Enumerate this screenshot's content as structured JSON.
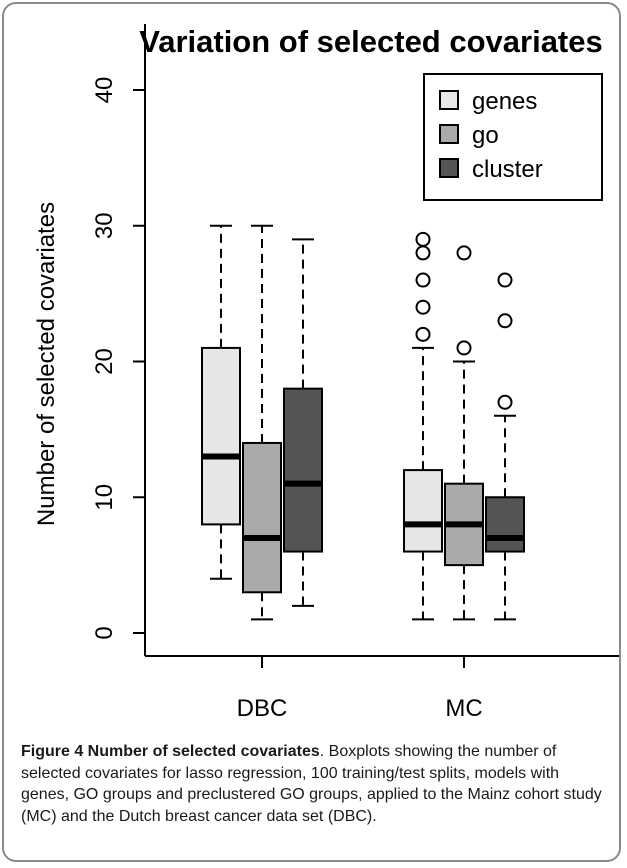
{
  "chart_data": {
    "type": "box",
    "title": "Variation of selected covariates",
    "ylabel": "Number of selected covariates",
    "xlabel": "",
    "ylim": [
      0,
      40
    ],
    "yticks": [
      0,
      10,
      20,
      30,
      40
    ],
    "categories": [
      "DBC",
      "MC"
    ],
    "legend": {
      "placement": "top-right"
    },
    "series": [
      {
        "name": "genes",
        "color": "#e6e6e6",
        "boxes": [
          {
            "category": "DBC",
            "min": 4,
            "q1": 8,
            "median": 13,
            "q3": 21,
            "max": 30,
            "outliers": []
          },
          {
            "category": "MC",
            "min": 1,
            "q1": 6,
            "median": 8,
            "q3": 12,
            "max": 21,
            "outliers": [
              22,
              24,
              26,
              28,
              29
            ]
          }
        ]
      },
      {
        "name": "go",
        "color": "#aaaaaa",
        "boxes": [
          {
            "category": "DBC",
            "min": 1,
            "q1": 3,
            "median": 7,
            "q3": 14,
            "max": 30,
            "outliers": []
          },
          {
            "category": "MC",
            "min": 1,
            "q1": 5,
            "median": 8,
            "q3": 11,
            "max": 20,
            "outliers": [
              21,
              28
            ]
          }
        ]
      },
      {
        "name": "cluster",
        "color": "#545454",
        "boxes": [
          {
            "category": "DBC",
            "min": 2,
            "q1": 6,
            "median": 11,
            "q3": 18,
            "max": 29,
            "outliers": []
          },
          {
            "category": "MC",
            "min": 1,
            "q1": 6,
            "median": 7,
            "q3": 10,
            "max": 16,
            "outliers": [
              17,
              23,
              26
            ]
          }
        ]
      }
    ]
  },
  "caption": {
    "label": "Figure 4 Number of selected covariates",
    "text": ". Boxplots showing the number of selected covariates for lasso regression, 100 training/test splits, models with genes, GO groups and preclustered GO groups, applied to the Mainz cohort study (MC) and the Dutch breast cancer data set (DBC)."
  }
}
